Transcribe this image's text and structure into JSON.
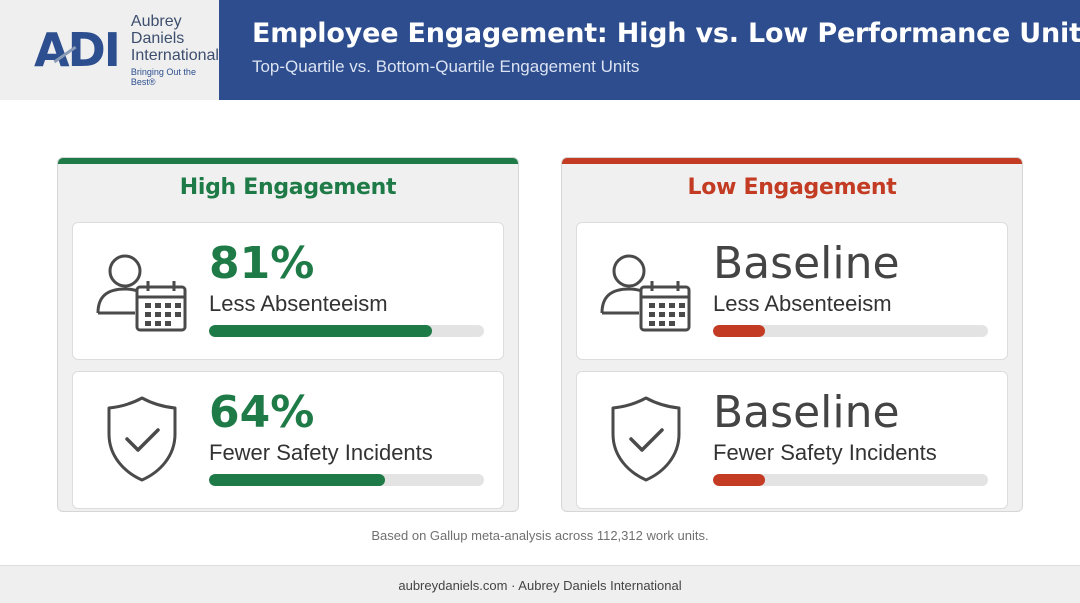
{
  "brand": {
    "mark": "ADI",
    "name_line1": "Aubrey Daniels",
    "name_line2": "International",
    "tagline": "Bringing Out the Best®"
  },
  "header": {
    "title": "Employee Engagement: High vs. Low Performance Units",
    "subtitle": "Top-Quartile vs. Bottom-Quartile Engagement Units"
  },
  "colors": {
    "high": "#1e7a46",
    "low": "#c23b22",
    "header_bg": "#2d4d8e"
  },
  "panels": {
    "high": {
      "title": "High Engagement",
      "cards": [
        {
          "icon": "person-calendar-icon",
          "value": "81%",
          "label": "Less Absenteeism",
          "bar_fraction": 0.81
        },
        {
          "icon": "shield-check-icon",
          "value": "64%",
          "label": "Fewer Safety Incidents",
          "bar_fraction": 0.64
        }
      ]
    },
    "low": {
      "title": "Low Engagement",
      "cards": [
        {
          "icon": "person-calendar-icon",
          "value": "Baseline",
          "label": "Less Absenteeism",
          "bar_fraction": 0.19
        },
        {
          "icon": "shield-check-icon",
          "value": "Baseline",
          "label": "Fewer Safety Incidents",
          "bar_fraction": 0.19
        }
      ]
    }
  },
  "note": "Based on Gallup meta-analysis across 112,312 work units.",
  "footer": "aubreydaniels.com · Aubrey Daniels International"
}
